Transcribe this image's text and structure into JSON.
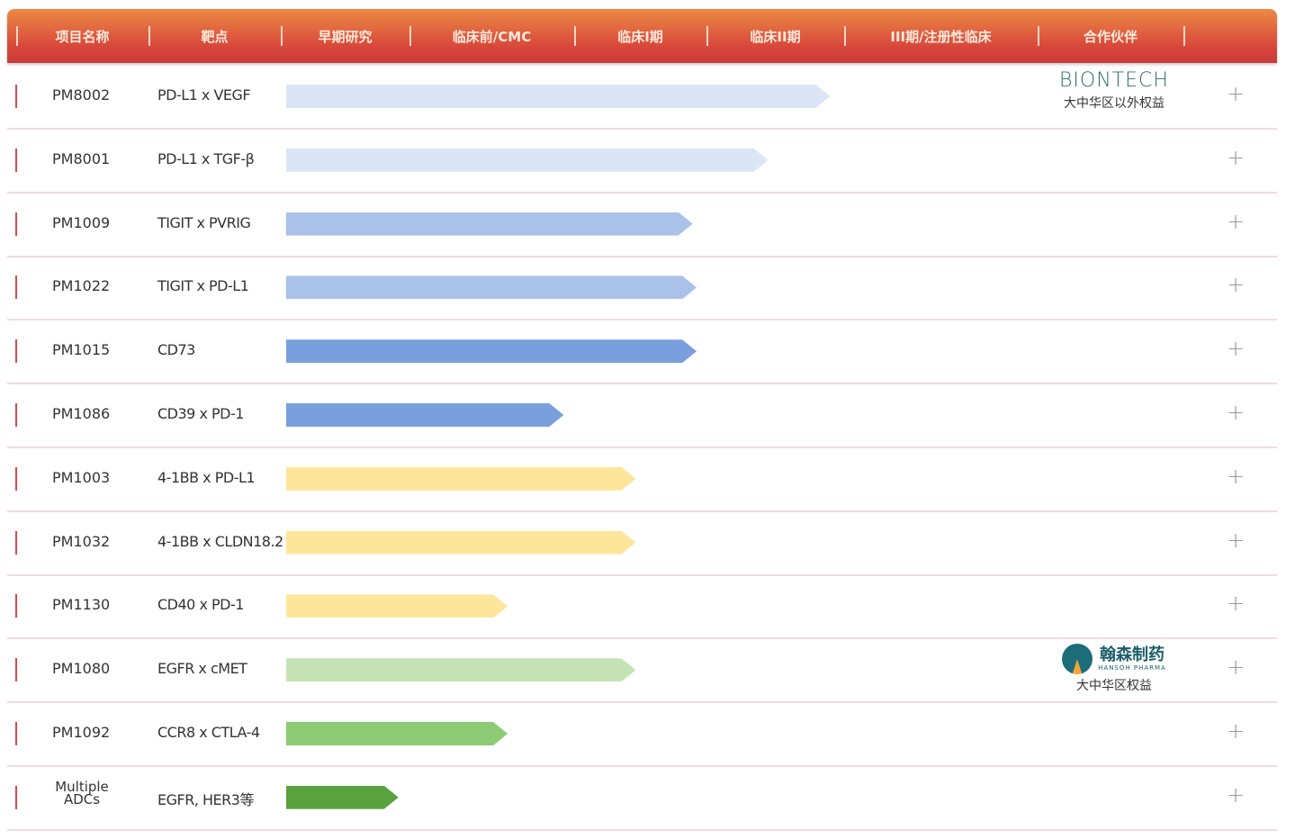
{
  "header": {
    "columns": [
      "项目名称",
      "靶点",
      "早期研究",
      "临床前/CMC",
      "临床I期",
      "临床II期",
      "III期/注册性临床",
      "合作伙伴"
    ]
  },
  "colors": {
    "header_top": "#ec8a45",
    "header_bottom": "#c93a3a",
    "row_marker": "#e0474c"
  },
  "chart_data": {
    "type": "bar",
    "orientation": "horizontal",
    "stages": [
      "早期研究",
      "临床前/CMC",
      "临床I期",
      "临床II期",
      "III期/注册性临床"
    ],
    "value_unit": "stages completed (0-5)",
    "xlim": [
      0,
      5
    ],
    "rows": [
      {
        "project": "PM8002",
        "target": "PD-L1 x VEGF",
        "value": 3.95,
        "color": "#dbe5f5",
        "partner": {
          "name": "BIONTECH",
          "rights": "大中华区以外权益"
        }
      },
      {
        "project": "PM8001",
        "target": "PD-L1 x TGF-β",
        "value": 3.5,
        "color": "#dbe5f5"
      },
      {
        "project": "PM1009",
        "target": "TIGIT x PVRIG",
        "value": 2.95,
        "color": "#aac1e9"
      },
      {
        "project": "PM1022",
        "target": "TIGIT x PD-L1",
        "value": 2.98,
        "color": "#aac1e9"
      },
      {
        "project": "PM1015",
        "target": "CD73",
        "value": 2.98,
        "color": "#7a9fdd"
      },
      {
        "project": "PM1086",
        "target": "CD39 x PD-1",
        "value": 1.98,
        "color": "#7a9fdd"
      },
      {
        "project": "PM1003",
        "target": "4-1BB x PD-L1",
        "value": 2.52,
        "color": "#fde69a"
      },
      {
        "project": "PM1032",
        "target": "4-1BB x CLDN18.2",
        "value": 2.52,
        "color": "#fde69a"
      },
      {
        "project": "PM1130",
        "target": "CD40 x PD-1",
        "value": 1.64,
        "color": "#fde69a"
      },
      {
        "project": "PM1080",
        "target": "EGFR x cMET",
        "value": 2.52,
        "color": "#c6e3b5",
        "partner": {
          "name": "翰森制药",
          "sub": "HANSOH PHARMA",
          "rights": "大中华区权益"
        }
      },
      {
        "project": "PM1092",
        "target": "CCR8 x CTLA-4",
        "value": 1.64,
        "color": "#8ccb73"
      },
      {
        "project": "Multiple ADCs",
        "target": "EGFR, HER3等",
        "value": 0.97,
        "color": "#5aa23e"
      }
    ]
  },
  "expand_label": "+"
}
